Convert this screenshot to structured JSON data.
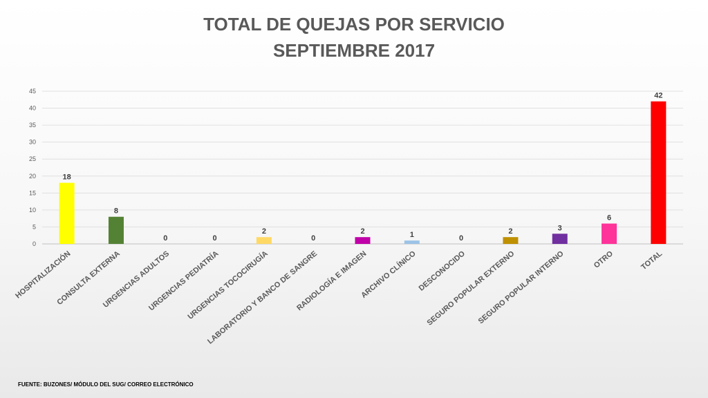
{
  "title_line1": "TOTAL DE QUEJAS POR SERVICIO",
  "title_line2": "SEPTIEMBRE 2017",
  "source_note": "FUENTE: BUZONES/ MÓDULO DEL SUG/ CORREO ELECTRÓNICO",
  "chart_data": {
    "type": "bar",
    "categories": [
      "HOSPITALIZACIÓN",
      "CONSULTA EXTERNA",
      "URGENCIAS ADULTOS",
      "URGENCIAS PEDIATRÍA",
      "URGENCIAS TOCOCIRUGÍA",
      "LABORATORIO Y BANCO DE SANGRE",
      "RADIOLOGÍA E IMAGEN",
      "ARCHIVO CLÍNICO",
      "DESCONOCIDO",
      "SEGURO POPULAR EXTERNO",
      "SEGURO POPULAR INTERNO",
      "OTRO",
      "TOTAL"
    ],
    "values": [
      18,
      8,
      0,
      0,
      2,
      0,
      2,
      1,
      0,
      2,
      3,
      6,
      42
    ],
    "colors": [
      "#ffff00",
      "#548235",
      "#4472c4",
      "#4472c4",
      "#ffd966",
      "#4472c4",
      "#c000a8",
      "#9dc3e6",
      "#4472c4",
      "#bf9000",
      "#7030a0",
      "#ff3399",
      "#ff0000"
    ],
    "yticks": [
      0,
      5,
      10,
      15,
      20,
      25,
      30,
      35,
      40,
      45
    ],
    "ylim": [
      0,
      45
    ],
    "grid": true,
    "data_labels": true
  }
}
